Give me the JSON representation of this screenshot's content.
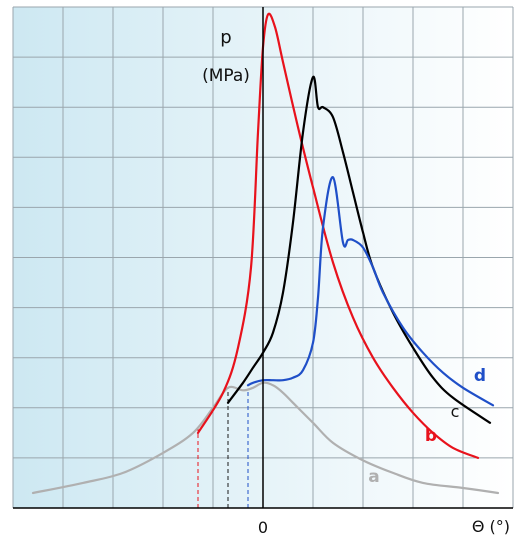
{
  "chart_data": {
    "type": "line",
    "xlabel": "Θ (°)",
    "ylabel_symbol": "p",
    "ylabel_unit": "(MPa)",
    "x_tick_labels": [
      {
        "value": 0,
        "label": "0"
      }
    ],
    "xlim": [
      -25,
      25
    ],
    "ylim": [
      0,
      10
    ],
    "grid": true,
    "background_gradient": [
      "#cde8f2",
      "#ffffff"
    ],
    "series": [
      {
        "name": "a",
        "color": "#b0b0b0",
        "x": [
          -23,
          -18,
          -14,
          -10,
          -7,
          -5,
          -3.5,
          -2,
          -1,
          0,
          1,
          2,
          3,
          5,
          7,
          10,
          13,
          16,
          20,
          23.5
        ],
        "y": [
          0.3,
          0.5,
          0.7,
          1.1,
          1.5,
          2.0,
          2.4,
          2.35,
          2.4,
          2.5,
          2.45,
          2.3,
          2.1,
          1.7,
          1.3,
          0.95,
          0.7,
          0.5,
          0.4,
          0.3
        ]
      },
      {
        "name": "b",
        "color": "#e8121c",
        "x": [
          -6.5,
          -4,
          -2.5,
          -1.2,
          -0.5,
          0,
          0.5,
          1.2,
          2,
          3.5,
          5,
          7,
          9,
          11,
          13,
          15,
          17,
          19,
          21.5
        ],
        "y": [
          1.5,
          2.3,
          3.2,
          4.8,
          7.5,
          9.2,
          9.85,
          9.6,
          8.9,
          7.6,
          6.4,
          4.9,
          3.8,
          3.0,
          2.4,
          1.9,
          1.5,
          1.2,
          1.0
        ]
      },
      {
        "name": "c",
        "color": "#000000",
        "x": [
          -3.5,
          -2,
          -1,
          0,
          1,
          2,
          3,
          4,
          5,
          5.5,
          6,
          7,
          8,
          9,
          10,
          11,
          13,
          15,
          17,
          19,
          22.7
        ],
        "y": [
          2.1,
          2.5,
          2.8,
          3.1,
          3.5,
          4.3,
          5.7,
          7.5,
          8.6,
          8.0,
          8.0,
          7.8,
          7.1,
          6.3,
          5.5,
          4.8,
          3.9,
          3.2,
          2.6,
          2.2,
          1.7
        ]
      },
      {
        "name": "d",
        "color": "#1f4fc8",
        "x": [
          -1.5,
          -1,
          0,
          1,
          2,
          3,
          4,
          5,
          5.5,
          6,
          7,
          8,
          8.5,
          9,
          10,
          11,
          12,
          14,
          16,
          18,
          20,
          23
        ],
        "y": [
          2.45,
          2.5,
          2.55,
          2.55,
          2.55,
          2.6,
          2.75,
          3.3,
          4.2,
          5.6,
          6.6,
          5.3,
          5.35,
          5.35,
          5.2,
          4.8,
          4.3,
          3.6,
          3.1,
          2.7,
          2.4,
          2.05
        ]
      }
    ],
    "markers": [
      {
        "x": -6.5,
        "color": "#e8121c"
      },
      {
        "x": -3.5,
        "color": "#1a1a1a"
      },
      {
        "x": -1.5,
        "color": "#1f4fc8"
      }
    ]
  }
}
